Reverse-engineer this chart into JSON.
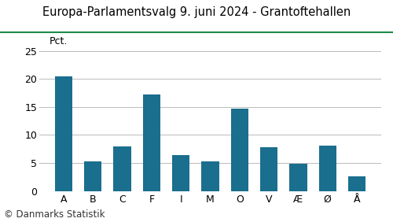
{
  "title": "Europa-Parlamentsvalg 9. juni 2024 - Grantoftehallen",
  "categories": [
    "A",
    "B",
    "C",
    "F",
    "I",
    "M",
    "O",
    "V",
    "Æ",
    "Ø",
    "Å"
  ],
  "values": [
    20.5,
    5.3,
    8.0,
    17.3,
    6.4,
    5.3,
    14.7,
    7.8,
    4.9,
    8.1,
    2.6
  ],
  "bar_color": "#1a6e8e",
  "ylabel": "Pct.",
  "ylim": [
    0,
    27
  ],
  "yticks": [
    0,
    5,
    10,
    15,
    20,
    25
  ],
  "footer": "© Danmarks Statistik",
  "title_fontsize": 10.5,
  "tick_fontsize": 9,
  "footer_fontsize": 8.5,
  "ylabel_fontsize": 9,
  "title_line_color": "#1e8c4a",
  "background_color": "#ffffff",
  "grid_color": "#bbbbbb"
}
